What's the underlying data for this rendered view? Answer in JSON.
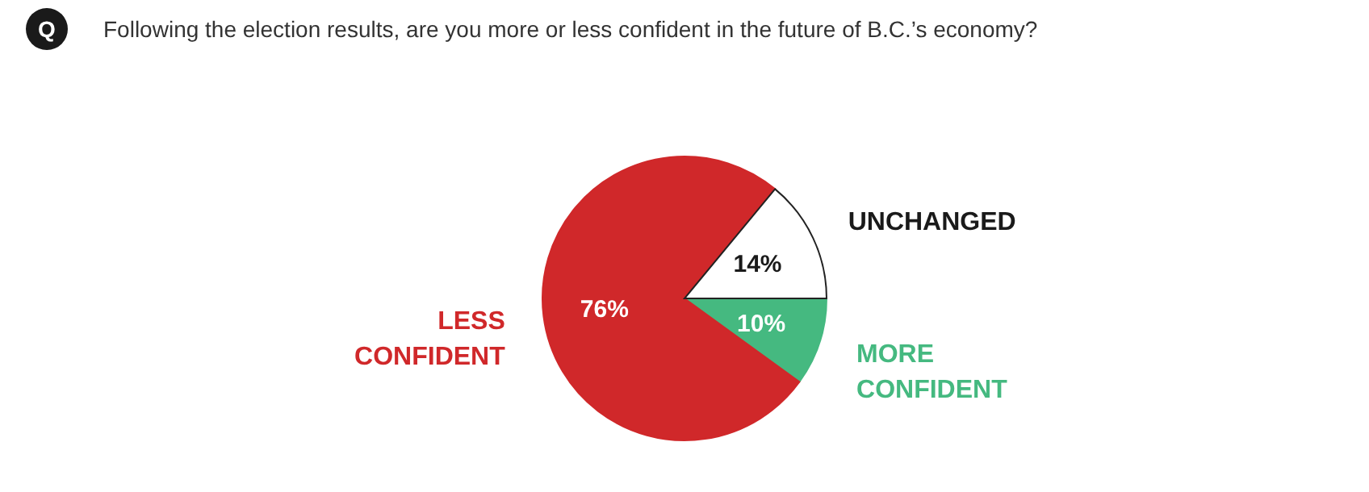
{
  "chart_data": {
    "type": "pie",
    "title": "Following the election results, are you more or less confident in the future of B.C.’s economy?",
    "annotations": [
      "Q"
    ],
    "categories": [
      "MORE CONFIDENT",
      "LESS CONFIDENT",
      "UNCHANGED"
    ],
    "values": [
      10,
      76,
      14
    ],
    "colors": [
      "#45b980",
      "#d0282a",
      "#ffffff"
    ],
    "value_labels": [
      "10%",
      "76%",
      "14%"
    ]
  }
}
